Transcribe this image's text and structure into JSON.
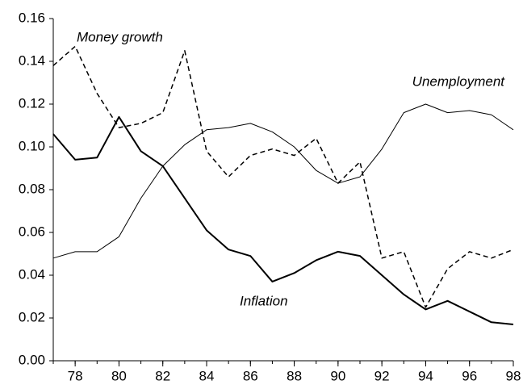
{
  "chart_data": {
    "type": "line",
    "x": [
      77,
      78,
      79,
      80,
      81,
      82,
      83,
      84,
      85,
      86,
      87,
      88,
      89,
      90,
      91,
      92,
      93,
      94,
      95,
      96,
      97,
      98
    ],
    "series": [
      {
        "name": "Money growth",
        "color": "#000000",
        "line_style": "dashed",
        "line_width": 1.5,
        "values": [
          0.138,
          0.147,
          0.125,
          0.109,
          0.111,
          0.116,
          0.145,
          0.098,
          0.086,
          0.096,
          0.099,
          0.096,
          0.104,
          0.083,
          0.093,
          0.048,
          0.051,
          0.025,
          0.043,
          0.051,
          0.048,
          0.052
        ]
      },
      {
        "name": "Unemployment",
        "color": "#000000",
        "line_style": "solid",
        "line_width": 1,
        "values": [
          0.048,
          0.051,
          0.051,
          0.058,
          0.076,
          0.091,
          0.101,
          0.108,
          0.109,
          0.111,
          0.107,
          0.1,
          0.089,
          0.083,
          0.086,
          0.099,
          0.116,
          0.12,
          0.116,
          0.117,
          0.115,
          0.108
        ]
      },
      {
        "name": "Inflation",
        "color": "#000000",
        "line_style": "solid",
        "line_width": 2,
        "values": [
          0.106,
          0.094,
          0.095,
          0.114,
          0.098,
          0.091,
          0.076,
          0.061,
          0.052,
          0.049,
          0.037,
          0.041,
          0.047,
          0.051,
          0.049,
          0.04,
          0.031,
          0.024,
          0.028,
          0.023,
          0.018,
          0.017
        ]
      }
    ],
    "xlim": [
      77,
      98
    ],
    "xticks": [
      78,
      80,
      82,
      84,
      86,
      88,
      90,
      92,
      94,
      96,
      98
    ],
    "ylim": [
      0,
      0.16
    ],
    "yticks": [
      {
        "value": 0,
        "label": "0.00"
      },
      0.02,
      0.04,
      0.06,
      0.08,
      {
        "value": 0.1,
        "label": "0.10"
      },
      0.12,
      0.14,
      0.16
    ],
    "grid": false
  }
}
